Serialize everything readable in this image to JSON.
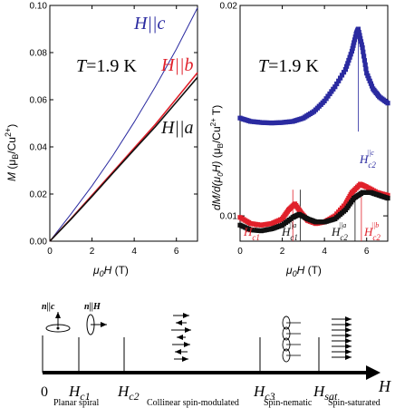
{
  "chart_data": [
    {
      "type": "line",
      "panel": "left",
      "temperature_label": "T=1.9 K",
      "xlabel": "μ0H  (T)",
      "ylabel": "M  (μB/Cu2+)",
      "xlim": [
        0,
        7
      ],
      "ylim": [
        0,
        0.1
      ],
      "xticks": [
        "0",
        "2",
        "4",
        "6"
      ],
      "yticks": [
        "0.00",
        "0.02",
        "0.04",
        "0.06",
        "0.08",
        "0.10"
      ],
      "grid": false,
      "series": [
        {
          "name": "H||c",
          "color": "#2a2aa0",
          "x": [
            0,
            1,
            2,
            3,
            4,
            5,
            6,
            7
          ],
          "y": [
            0,
            0.0115,
            0.0235,
            0.0365,
            0.0505,
            0.0655,
            0.0815,
            0.099
          ]
        },
        {
          "name": "H||b",
          "color": "#e0202a",
          "x": [
            0,
            1,
            2,
            3,
            4,
            5,
            6,
            7
          ],
          "y": [
            0,
            0.0095,
            0.0195,
            0.0295,
            0.0395,
            0.0495,
            0.0605,
            0.0715
          ]
        },
        {
          "name": "H||a",
          "color": "#111111",
          "x": [
            0,
            1,
            2,
            3,
            4,
            5,
            6,
            7
          ],
          "y": [
            0,
            0.0093,
            0.019,
            0.029,
            0.0388,
            0.0485,
            0.059,
            0.0695
          ]
        }
      ]
    },
    {
      "type": "scatter",
      "panel": "right",
      "temperature_label": "T=1.9 K",
      "xlabel": "μ0H  (T)",
      "ylabel": "dM/d(μ0H)  (μB/Cu2+ T)",
      "xlim": [
        0,
        7
      ],
      "ylim": [
        0.0092,
        0.02
      ],
      "y_scale": "log",
      "xticks": [
        "0",
        "2",
        "4",
        "6"
      ],
      "yticks": [
        "0.01",
        "0.02"
      ],
      "grid": false,
      "series": [
        {
          "name": "H||c",
          "color": "#2a2aa0",
          "x": [
            0,
            0.5,
            1,
            1.5,
            2,
            2.5,
            3,
            3.5,
            4,
            4.5,
            5,
            5.3,
            5.5,
            5.6,
            5.8,
            6,
            6.3,
            6.6,
            7
          ],
          "y": [
            0.0138,
            0.01365,
            0.0136,
            0.01358,
            0.0136,
            0.01365,
            0.0138,
            0.0141,
            0.0146,
            0.0153,
            0.0162,
            0.0172,
            0.0182,
            0.0185,
            0.0174,
            0.016,
            0.0152,
            0.0148,
            0.0145
          ]
        },
        {
          "name": "H||b",
          "color": "#e0202a",
          "x": [
            0,
            0.5,
            1,
            1.5,
            2,
            2.3,
            2.6,
            2.9,
            3.2,
            3.6,
            4,
            4.5,
            5,
            5.3,
            5.7,
            6,
            6.5,
            7
          ],
          "y": [
            0.00995,
            0.00975,
            0.0097,
            0.00975,
            0.0099,
            0.0102,
            0.0104,
            0.0101,
            0.00985,
            0.00975,
            0.0098,
            0.01,
            0.0104,
            0.0108,
            0.0111,
            0.011,
            0.0108,
            0.0107
          ]
        },
        {
          "name": "H||a",
          "color": "#111111",
          "x": [
            0,
            0.5,
            1,
            1.5,
            2,
            2.5,
            2.8,
            3.2,
            3.6,
            4,
            4.5,
            5,
            5.4,
            5.8,
            6.2,
            6.6,
            7
          ],
          "y": [
            0.0097,
            0.00955,
            0.00952,
            0.00958,
            0.0097,
            0.00995,
            0.01005,
            0.0099,
            0.0098,
            0.0098,
            0.0099,
            0.0102,
            0.0106,
            0.0108,
            0.0108,
            0.0107,
            0.0106
          ]
        }
      ],
      "annotations": [
        {
          "label": "H_c2^||c",
          "color": "#2a2aa0",
          "x": 5.6
        },
        {
          "label": "H_c1^||b",
          "color": "#e0202a",
          "x": 2.5
        },
        {
          "label": "H_c1^||a",
          "color": "#111111",
          "x": 2.85
        },
        {
          "label": "H_c2^||a",
          "color": "#111111",
          "x": 5.45
        },
        {
          "label": "H_c2^||b",
          "color": "#e0202a",
          "x": 5.75
        }
      ]
    }
  ],
  "left_panel": {
    "temperature": "T=1.9 K",
    "labels": {
      "c": "H||c",
      "b": "H||b",
      "a": "H||a"
    }
  },
  "right_panel": {
    "temperature": "T=1.9 K"
  },
  "phase_diagram": {
    "field_axis_label": "H",
    "origin_label": "0",
    "marks": [
      "Hc1",
      "Hc2",
      "Hc3",
      "Hsat"
    ],
    "phases": [
      "Planar spiral",
      "Collinear spin-modulated",
      "Spin-nematic",
      "Spin-saturated"
    ],
    "orientation_labels": {
      "left": "n||c",
      "right": "n||H"
    }
  }
}
